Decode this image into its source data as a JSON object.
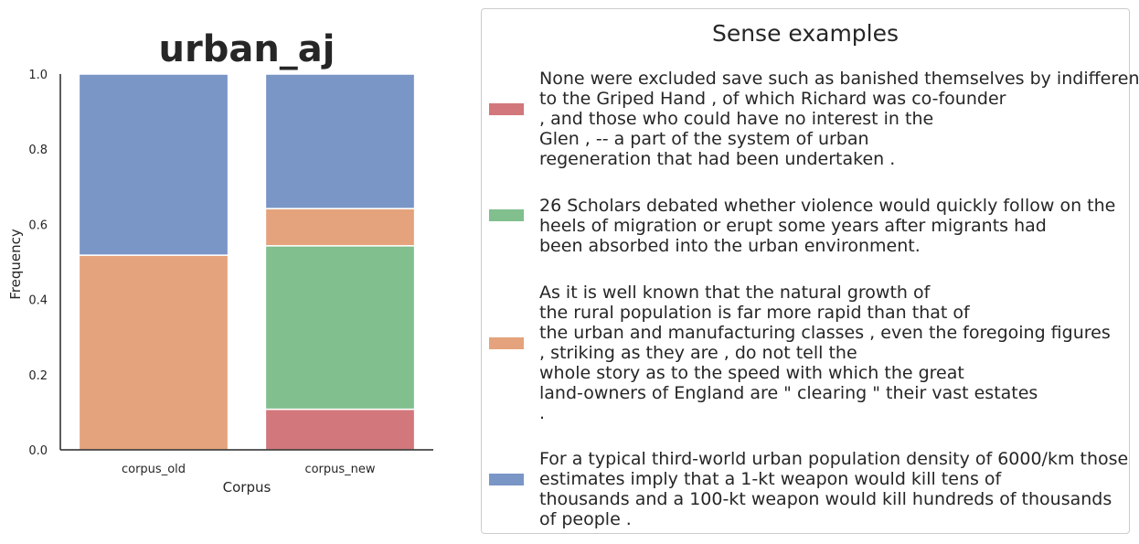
{
  "chart_data": {
    "type": "bar",
    "stacked": true,
    "title": "urban_aj",
    "xlabel": "Corpus",
    "ylabel": "Frequency",
    "ylim": [
      0,
      1
    ],
    "yticks": [
      "0.0",
      "0.2",
      "0.4",
      "0.6",
      "0.8",
      "1.0"
    ],
    "categories": [
      "corpus_old",
      "corpus_new"
    ],
    "series": [
      {
        "color": "#d2777b",
        "values": [
          0.0,
          0.108
        ]
      },
      {
        "color": "#81bf8e",
        "values": [
          0.0,
          0.435
        ]
      },
      {
        "color": "#e4a37c",
        "values": [
          0.518,
          0.099
        ]
      },
      {
        "color": "#7a96c6",
        "values": [
          0.482,
          0.358
        ]
      }
    ]
  },
  "legend": {
    "title": "Sense examples",
    "entries": [
      {
        "color": "#d2777b",
        "text": "None were excluded save such as banished themselves by indifference\nto the Griped Hand , of which Richard was co-founder\n, and those who could have no interest in the\nGlen , -- a part of the system of urban\nregeneration that had been undertaken ."
      },
      {
        "color": "#81bf8e",
        "text": "26 Scholars debated whether violence would quickly follow on the\nheels of migration or erupt some years after migrants had\nbeen absorbed into the urban environment."
      },
      {
        "color": "#e4a37c",
        "text": "As it is well known that the natural growth of\nthe rural population is far more rapid than that of\nthe urban and manufacturing classes , even the foregoing figures\n, striking as they are , do not tell the\nwhole story as to the speed with which the great\nland-owners of England are \" clearing \" their vast estates\n."
      },
      {
        "color": "#7a96c6",
        "text": "For a typical third-world urban population density of 6000/km those\nestimates imply that a 1-kt weapon would kill tens of\nthousands and a 100-kt weapon would kill hundreds of thousands\nof people ."
      }
    ]
  }
}
